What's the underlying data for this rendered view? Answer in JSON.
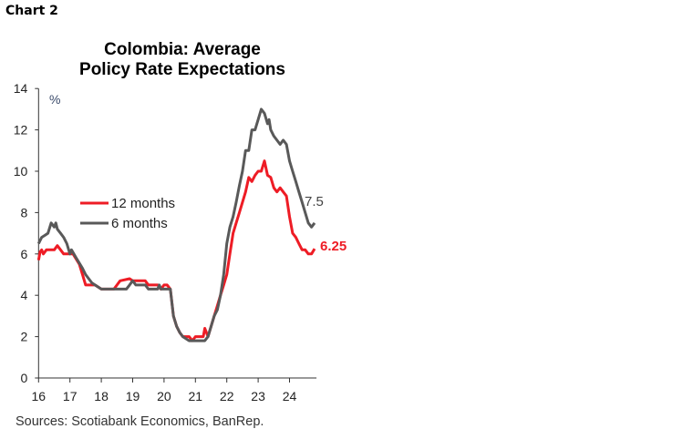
{
  "chart_label": "Chart 2",
  "source": "Sources: Scotiabank Economics, BanRep.",
  "chart_data": {
    "type": "line",
    "title": [
      "Colombia: Average",
      "Policy Rate Expectations"
    ],
    "ylabel": "%",
    "xlabel": "",
    "ylim": [
      0,
      14
    ],
    "yticks": [
      0,
      2,
      4,
      6,
      8,
      10,
      12,
      14
    ],
    "xlim": [
      16,
      24.83
    ],
    "xticks": [
      "16",
      "17",
      "18",
      "19",
      "20",
      "21",
      "22",
      "23",
      "24"
    ],
    "grid": false,
    "legend": "center-left",
    "colors": {
      "12 months": "#ee1c25",
      "6 months": "#595959"
    },
    "series": [
      {
        "name": "12 months",
        "end_label": "6.25",
        "x": [
          16.0,
          16.05,
          16.1,
          16.15,
          16.25,
          16.5,
          16.6,
          16.7,
          16.8,
          17.1,
          17.3,
          17.4,
          17.5,
          17.6,
          17.8,
          18.0,
          18.4,
          18.5,
          18.6,
          18.9,
          19.0,
          19.4,
          19.5,
          19.8,
          19.9,
          20.0,
          20.1,
          20.2,
          20.3,
          20.4,
          20.5,
          20.6,
          20.8,
          20.9,
          21.0,
          21.25,
          21.3,
          21.4,
          21.5,
          21.6,
          21.7,
          21.8,
          21.9,
          22.0,
          22.1,
          22.2,
          22.3,
          22.4,
          22.5,
          22.6,
          22.7,
          22.8,
          22.9,
          23.0,
          23.1,
          23.2,
          23.3,
          23.4,
          23.5,
          23.6,
          23.7,
          23.8,
          23.9,
          24.0,
          24.1,
          24.2,
          24.3,
          24.4,
          24.5,
          24.6,
          24.7,
          24.8
        ],
        "y": [
          5.7,
          6.1,
          6.2,
          6.0,
          6.2,
          6.2,
          6.4,
          6.2,
          6.0,
          6.0,
          5.5,
          5.0,
          4.5,
          4.5,
          4.5,
          4.3,
          4.3,
          4.5,
          4.7,
          4.8,
          4.7,
          4.7,
          4.5,
          4.5,
          4.3,
          4.5,
          4.5,
          4.3,
          3.0,
          2.5,
          2.2,
          2.0,
          2.0,
          1.8,
          2.0,
          2.0,
          2.4,
          2.0,
          2.5,
          3.0,
          3.5,
          4.0,
          4.5,
          5.0,
          6.0,
          7.0,
          7.5,
          8.0,
          8.5,
          9.0,
          9.7,
          9.5,
          9.8,
          10.0,
          10.0,
          10.5,
          9.8,
          9.7,
          9.2,
          9.0,
          9.2,
          9.0,
          8.8,
          7.8,
          7.0,
          6.8,
          6.5,
          6.2,
          6.2,
          6.0,
          6.0,
          6.25
        ]
      },
      {
        "name": "6 months",
        "end_label": "7.5",
        "x": [
          16.0,
          16.1,
          16.2,
          16.3,
          16.4,
          16.5,
          16.55,
          16.6,
          16.7,
          16.8,
          16.9,
          17.0,
          17.05,
          17.2,
          17.4,
          17.5,
          17.6,
          17.7,
          17.8,
          18.0,
          18.8,
          18.9,
          19.0,
          19.1,
          19.4,
          19.5,
          19.8,
          19.85,
          19.9,
          20.2,
          20.3,
          20.4,
          20.5,
          20.6,
          20.8,
          21.3,
          21.4,
          21.5,
          21.6,
          21.7,
          21.8,
          21.9,
          22.0,
          22.1,
          22.2,
          22.3,
          22.4,
          22.5,
          22.6,
          22.7,
          22.8,
          22.9,
          23.0,
          23.1,
          23.2,
          23.3,
          23.35,
          23.4,
          23.5,
          23.6,
          23.7,
          23.8,
          23.9,
          24.0,
          24.1,
          24.2,
          24.3,
          24.4,
          24.5,
          24.6,
          24.7,
          24.8
        ],
        "y": [
          6.5,
          6.8,
          6.9,
          7.0,
          7.5,
          7.3,
          7.5,
          7.2,
          7.0,
          6.8,
          6.5,
          6.0,
          6.2,
          5.8,
          5.3,
          5.0,
          4.8,
          4.6,
          4.5,
          4.3,
          4.3,
          4.5,
          4.7,
          4.5,
          4.5,
          4.3,
          4.3,
          4.5,
          4.3,
          4.3,
          3.0,
          2.5,
          2.2,
          2.0,
          1.8,
          1.8,
          2.0,
          2.5,
          3.0,
          3.3,
          4.0,
          5.0,
          6.5,
          7.3,
          7.8,
          8.5,
          9.3,
          10.0,
          11.0,
          11.0,
          12.0,
          12.0,
          12.5,
          13.0,
          12.8,
          12.3,
          12.5,
          12.0,
          11.7,
          11.5,
          11.3,
          11.5,
          11.3,
          10.5,
          10.0,
          9.5,
          9.0,
          8.5,
          8.0,
          7.5,
          7.3,
          7.5
        ]
      }
    ]
  }
}
